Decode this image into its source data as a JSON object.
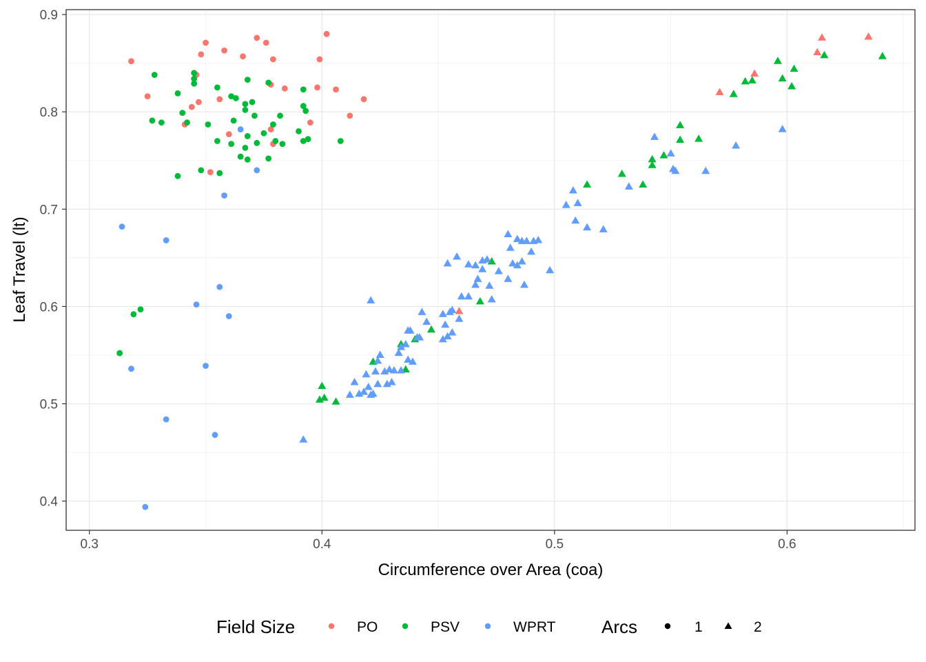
{
  "chart_data": {
    "type": "scatter",
    "xlabel": "Circumference over Area (coa)",
    "ylabel": "Leaf Travel (lt)",
    "xlim": [
      0.29,
      0.655
    ],
    "ylim": [
      0.37,
      0.905
    ],
    "x_ticks": [
      0.3,
      0.4,
      0.5,
      0.6
    ],
    "y_ticks": [
      0.4,
      0.5,
      0.6,
      0.7,
      0.8,
      0.9
    ],
    "x_tick_labels": [
      "0.3",
      "0.4",
      "0.5",
      "0.6"
    ],
    "y_tick_labels": [
      "0.4",
      "0.5",
      "0.6",
      "0.7",
      "0.8",
      "0.9"
    ],
    "grid": true,
    "legend_position": "bottom",
    "color_legend": {
      "title": "Field Size",
      "entries": [
        {
          "label": "PO",
          "color": "#F8766D"
        },
        {
          "label": "PSV",
          "color": "#00BA38"
        },
        {
          "label": "WPRT",
          "color": "#619CFF"
        }
      ]
    },
    "shape_legend": {
      "title": "Arcs",
      "entries": [
        {
          "label": "1",
          "shape": "circle"
        },
        {
          "label": "2",
          "shape": "triangle"
        }
      ]
    },
    "series": [
      {
        "name": "PO",
        "arcs": "1",
        "color": "#F8766D",
        "shape": "circle",
        "points": [
          [
            0.318,
            0.852
          ],
          [
            0.35,
            0.871
          ],
          [
            0.372,
            0.876
          ],
          [
            0.376,
            0.871
          ],
          [
            0.402,
            0.88
          ],
          [
            0.348,
            0.859
          ],
          [
            0.358,
            0.863
          ],
          [
            0.366,
            0.857
          ],
          [
            0.379,
            0.854
          ],
          [
            0.399,
            0.854
          ],
          [
            0.346,
            0.838
          ],
          [
            0.325,
            0.816
          ],
          [
            0.378,
            0.828
          ],
          [
            0.384,
            0.824
          ],
          [
            0.398,
            0.825
          ],
          [
            0.406,
            0.823
          ],
          [
            0.418,
            0.813
          ],
          [
            0.356,
            0.813
          ],
          [
            0.347,
            0.81
          ],
          [
            0.344,
            0.805
          ],
          [
            0.341,
            0.787
          ],
          [
            0.36,
            0.777
          ],
          [
            0.378,
            0.782
          ],
          [
            0.379,
            0.767
          ],
          [
            0.395,
            0.789
          ],
          [
            0.412,
            0.796
          ],
          [
            0.352,
            0.738
          ]
        ]
      },
      {
        "name": "PSV",
        "arcs": "1",
        "color": "#00BA38",
        "shape": "circle",
        "points": [
          [
            0.328,
            0.838
          ],
          [
            0.345,
            0.84
          ],
          [
            0.345,
            0.834
          ],
          [
            0.345,
            0.829
          ],
          [
            0.368,
            0.833
          ],
          [
            0.377,
            0.83
          ],
          [
            0.355,
            0.825
          ],
          [
            0.392,
            0.823
          ],
          [
            0.338,
            0.819
          ],
          [
            0.361,
            0.816
          ],
          [
            0.363,
            0.814
          ],
          [
            0.37,
            0.81
          ],
          [
            0.367,
            0.808
          ],
          [
            0.392,
            0.806
          ],
          [
            0.393,
            0.801
          ],
          [
            0.34,
            0.799
          ],
          [
            0.367,
            0.802
          ],
          [
            0.327,
            0.791
          ],
          [
            0.331,
            0.789
          ],
          [
            0.351,
            0.787
          ],
          [
            0.362,
            0.791
          ],
          [
            0.371,
            0.796
          ],
          [
            0.379,
            0.787
          ],
          [
            0.382,
            0.796
          ],
          [
            0.342,
            0.789
          ],
          [
            0.368,
            0.775
          ],
          [
            0.372,
            0.768
          ],
          [
            0.375,
            0.778
          ],
          [
            0.39,
            0.78
          ],
          [
            0.355,
            0.77
          ],
          [
            0.361,
            0.767
          ],
          [
            0.367,
            0.763
          ],
          [
            0.38,
            0.77
          ],
          [
            0.383,
            0.767
          ],
          [
            0.394,
            0.772
          ],
          [
            0.408,
            0.77
          ],
          [
            0.392,
            0.77
          ],
          [
            0.365,
            0.754
          ],
          [
            0.368,
            0.751
          ],
          [
            0.377,
            0.752
          ],
          [
            0.338,
            0.734
          ],
          [
            0.348,
            0.74
          ],
          [
            0.356,
            0.737
          ],
          [
            0.322,
            0.597
          ],
          [
            0.319,
            0.592
          ],
          [
            0.313,
            0.552
          ]
        ]
      },
      {
        "name": "WPRT",
        "arcs": "1",
        "color": "#619CFF",
        "shape": "circle",
        "points": [
          [
            0.365,
            0.782
          ],
          [
            0.372,
            0.74
          ],
          [
            0.358,
            0.714
          ],
          [
            0.314,
            0.682
          ],
          [
            0.333,
            0.668
          ],
          [
            0.356,
            0.62
          ],
          [
            0.346,
            0.602
          ],
          [
            0.36,
            0.59
          ],
          [
            0.318,
            0.536
          ],
          [
            0.35,
            0.539
          ],
          [
            0.333,
            0.484
          ],
          [
            0.354,
            0.468
          ],
          [
            0.324,
            0.394
          ]
        ]
      },
      {
        "name": "PO",
        "arcs": "2",
        "color": "#F8766D",
        "shape": "triangle",
        "points": [
          [
            0.635,
            0.877
          ],
          [
            0.615,
            0.876
          ],
          [
            0.613,
            0.861
          ],
          [
            0.586,
            0.839
          ],
          [
            0.571,
            0.82
          ],
          [
            0.459,
            0.595
          ]
        ]
      },
      {
        "name": "PSV",
        "arcs": "2",
        "color": "#00BA38",
        "shape": "triangle",
        "points": [
          [
            0.641,
            0.857
          ],
          [
            0.616,
            0.858
          ],
          [
            0.596,
            0.852
          ],
          [
            0.603,
            0.844
          ],
          [
            0.598,
            0.834
          ],
          [
            0.602,
            0.826
          ],
          [
            0.585,
            0.832
          ],
          [
            0.582,
            0.831
          ],
          [
            0.577,
            0.818
          ],
          [
            0.554,
            0.786
          ],
          [
            0.554,
            0.771
          ],
          [
            0.562,
            0.772
          ],
          [
            0.547,
            0.755
          ],
          [
            0.542,
            0.751
          ],
          [
            0.542,
            0.745
          ],
          [
            0.529,
            0.736
          ],
          [
            0.538,
            0.725
          ],
          [
            0.514,
            0.725
          ],
          [
            0.473,
            0.646
          ],
          [
            0.468,
            0.605
          ],
          [
            0.447,
            0.576
          ],
          [
            0.44,
            0.566
          ],
          [
            0.434,
            0.561
          ],
          [
            0.422,
            0.543
          ],
          [
            0.436,
            0.535
          ],
          [
            0.4,
            0.518
          ],
          [
            0.399,
            0.504
          ],
          [
            0.401,
            0.506
          ],
          [
            0.406,
            0.502
          ]
        ]
      },
      {
        "name": "WPRT",
        "arcs": "2",
        "color": "#619CFF",
        "shape": "triangle",
        "points": [
          [
            0.598,
            0.782
          ],
          [
            0.578,
            0.765
          ],
          [
            0.565,
            0.739
          ],
          [
            0.543,
            0.774
          ],
          [
            0.55,
            0.757
          ],
          [
            0.551,
            0.741
          ],
          [
            0.552,
            0.739
          ],
          [
            0.532,
            0.723
          ],
          [
            0.508,
            0.719
          ],
          [
            0.51,
            0.706
          ],
          [
            0.505,
            0.704
          ],
          [
            0.509,
            0.688
          ],
          [
            0.514,
            0.681
          ],
          [
            0.521,
            0.679
          ],
          [
            0.48,
            0.674
          ],
          [
            0.484,
            0.669
          ],
          [
            0.486,
            0.667
          ],
          [
            0.488,
            0.667
          ],
          [
            0.491,
            0.667
          ],
          [
            0.493,
            0.668
          ],
          [
            0.481,
            0.66
          ],
          [
            0.49,
            0.656
          ],
          [
            0.458,
            0.651
          ],
          [
            0.466,
            0.642
          ],
          [
            0.469,
            0.647
          ],
          [
            0.471,
            0.648
          ],
          [
            0.463,
            0.643
          ],
          [
            0.454,
            0.644
          ],
          [
            0.469,
            0.638
          ],
          [
            0.476,
            0.636
          ],
          [
            0.48,
            0.628
          ],
          [
            0.482,
            0.644
          ],
          [
            0.484,
            0.642
          ],
          [
            0.486,
            0.646
          ],
          [
            0.498,
            0.637
          ],
          [
            0.487,
            0.622
          ],
          [
            0.472,
            0.621
          ],
          [
            0.466,
            0.622
          ],
          [
            0.463,
            0.61
          ],
          [
            0.46,
            0.61
          ],
          [
            0.473,
            0.607
          ],
          [
            0.467,
            0.628
          ],
          [
            0.421,
            0.606
          ],
          [
            0.443,
            0.594
          ],
          [
            0.452,
            0.592
          ],
          [
            0.456,
            0.596
          ],
          [
            0.455,
            0.594
          ],
          [
            0.459,
            0.587
          ],
          [
            0.453,
            0.581
          ],
          [
            0.445,
            0.584
          ],
          [
            0.441,
            0.568
          ],
          [
            0.452,
            0.566
          ],
          [
            0.454,
            0.569
          ],
          [
            0.456,
            0.573
          ],
          [
            0.437,
            0.575
          ],
          [
            0.438,
            0.575
          ],
          [
            0.441,
            0.568
          ],
          [
            0.434,
            0.558
          ],
          [
            0.436,
            0.561
          ],
          [
            0.433,
            0.552
          ],
          [
            0.437,
            0.545
          ],
          [
            0.439,
            0.543
          ],
          [
            0.425,
            0.55
          ],
          [
            0.424,
            0.544
          ],
          [
            0.423,
            0.533
          ],
          [
            0.427,
            0.533
          ],
          [
            0.429,
            0.535
          ],
          [
            0.431,
            0.534
          ],
          [
            0.419,
            0.53
          ],
          [
            0.424,
            0.52
          ],
          [
            0.428,
            0.52
          ],
          [
            0.43,
            0.522
          ],
          [
            0.418,
            0.512
          ],
          [
            0.416,
            0.51
          ],
          [
            0.414,
            0.522
          ],
          [
            0.412,
            0.509
          ],
          [
            0.42,
            0.517
          ],
          [
            0.421,
            0.509
          ],
          [
            0.422,
            0.51
          ],
          [
            0.392,
            0.463
          ],
          [
            0.434,
            0.534
          ],
          [
            0.442,
            0.568
          ]
        ]
      }
    ]
  }
}
